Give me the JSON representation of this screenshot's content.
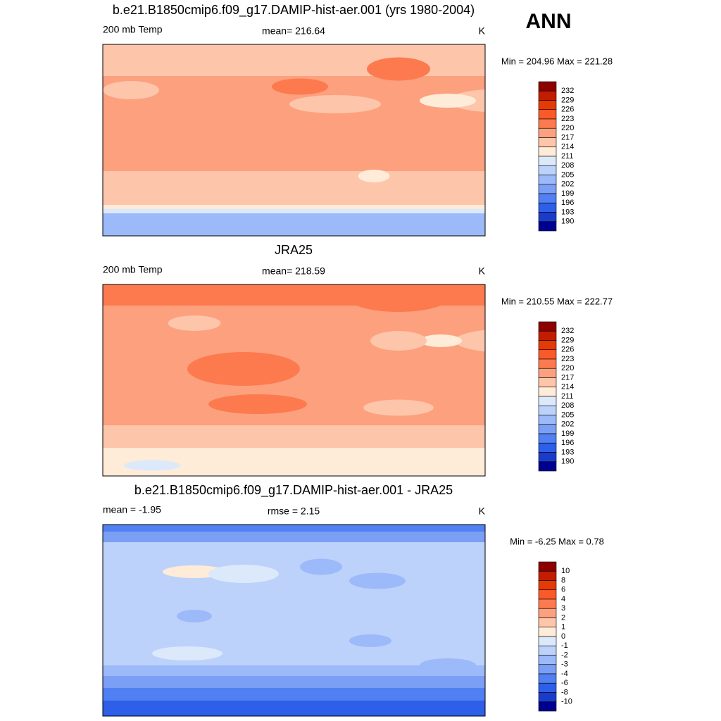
{
  "figure_label": "ANN",
  "colorbar_colors": [
    "#8b0000",
    "#c21d00",
    "#e63a05",
    "#fa5a2a",
    "#fc7a4e",
    "#fca07e",
    "#fdc5aa",
    "#feebd8",
    "#dce9fb",
    "#bcd2fb",
    "#9cbaf9",
    "#7a9ff5",
    "#5080f2",
    "#2e5fe8",
    "#1a3ccc",
    "#000090"
  ],
  "panels": [
    {
      "title": "b.e21.B1850cmip6.f09_g17.DAMIP-hist-aer.001 (yrs 1980-2004)",
      "left_label": "200 mb Temp",
      "center_label": "mean= 216.64",
      "units": "K",
      "min_max": "Min = 204.96 Max = 221.28",
      "colorbar_labels": [
        232,
        229,
        226,
        223,
        220,
        217,
        214,
        211,
        208,
        205,
        202,
        199,
        196,
        193,
        190
      ]
    },
    {
      "title": "JRA25",
      "left_label": "200 mb Temp",
      "center_label": "mean= 218.59",
      "units": "K",
      "min_max": "Min = 210.55 Max = 222.77",
      "colorbar_labels": [
        232,
        229,
        226,
        223,
        220,
        217,
        214,
        211,
        208,
        205,
        202,
        199,
        196,
        193,
        190
      ]
    },
    {
      "title": "b.e21.B1850cmip6.f09_g17.DAMIP-hist-aer.001 - JRA25",
      "left_label": "mean =  -1.95",
      "center_label": "rmse =   2.15",
      "units": "K",
      "min_max": "Min =  -6.25 Max =   0.78",
      "colorbar_labels": [
        10,
        8,
        6,
        4,
        3,
        2,
        1,
        0,
        -1,
        -2,
        -3,
        -4,
        -6,
        -8,
        -10
      ]
    }
  ]
}
